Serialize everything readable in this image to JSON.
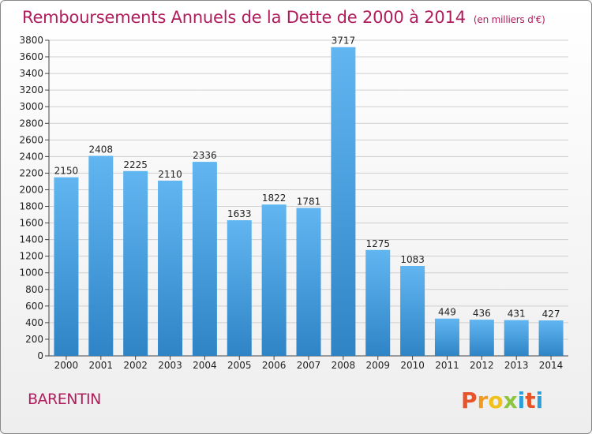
{
  "title": "Remboursements Annuels de la Dette de 2000 à 2014",
  "unit_note": "(en milliers d'€)",
  "commune": "BARENTIN",
  "logo": {
    "text": "Proxiti",
    "colors": [
      "#e8542a",
      "#f29a1f",
      "#f2c01a",
      "#8cc63f",
      "#2b9fd9",
      "#e8542a",
      "#2b9fd9"
    ]
  },
  "colors": {
    "title": "#b01d5c",
    "bar_top": "#61b6f1",
    "bar_bottom": "#2f84c6",
    "grid": "#cfcfcf"
  },
  "chart_data": {
    "type": "bar",
    "categories": [
      "2000",
      "2001",
      "2002",
      "2003",
      "2004",
      "2005",
      "2006",
      "2007",
      "2008",
      "2009",
      "2010",
      "2011",
      "2012",
      "2013",
      "2014"
    ],
    "values": [
      2150,
      2408,
      2225,
      2110,
      2336,
      1633,
      1822,
      1781,
      3717,
      1275,
      1083,
      449,
      436,
      431,
      427
    ],
    "ylim": [
      0,
      3800
    ],
    "yticks": [
      0,
      200,
      400,
      600,
      800,
      1000,
      1200,
      1400,
      1600,
      1800,
      2000,
      2200,
      2400,
      2600,
      2800,
      3000,
      3200,
      3400,
      3600,
      3800
    ],
    "grid": true,
    "xlabel": "",
    "ylabel": ""
  }
}
